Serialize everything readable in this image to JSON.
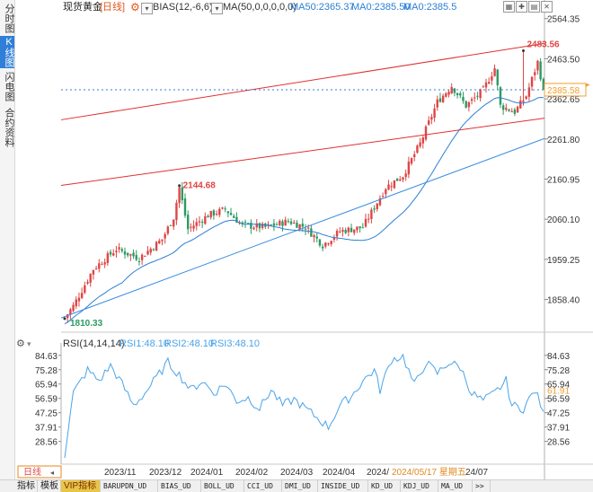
{
  "header": {
    "instrument": "现货黄金",
    "period": "[日线]",
    "bias_label": "BIAS(12,-6,6)",
    "ma_label": "MA(50,0,0,0,0,0)",
    "ma50": "MA50:2365.37",
    "ma0a": "MA0:2385.50",
    "ma0b": "MA0:2385.5"
  },
  "sidebar": {
    "tabs": [
      "分时图",
      "K线图",
      "闪电图",
      "合约资料"
    ],
    "active": 1
  },
  "rsi_header": {
    "label": "RSI(14,14,14)",
    "rsi1": "RSI1:48.10",
    "rsi2": "RSI2:48.10",
    "rsi3": "RSI3:48.10"
  },
  "bottom": {
    "period_label": "日线",
    "time_labels": [
      "2023/11",
      "2023/12",
      "2024/01",
      "2024/02",
      "2024/03",
      "2024/04",
      "2024/",
      "2024/05/17 星期五",
      "24/07"
    ],
    "tabs": [
      "指标",
      "模板",
      "VIP指标",
      "BARUPDN_UD",
      "BIAS_UD",
      "BOLL_UD",
      "CCI_UD",
      "DMI_UD",
      "INSIDE_UD",
      "KD_UD",
      "KDJ_UD",
      "MA_UD",
      ">>"
    ],
    "active_tab": 2
  },
  "colors": {
    "up": "#e04545",
    "down": "#2c9a62",
    "channel": "#e03030",
    "trend": "#3a8ee0",
    "ma": "#2b7fd6",
    "rsi": "#4aa3e8",
    "current_price": "#f0a030"
  },
  "chart_data": [
    {
      "type": "candlestick",
      "title": "现货黄金 [日线]",
      "y_ticks": [
        2564.35,
        2463.5,
        2362.65,
        2261.8,
        2160.95,
        2060.1,
        1959.25,
        1858.4
      ],
      "ylim": [
        1810.0,
        2575.0
      ],
      "x_ticks": [
        "2023/11",
        "2023/12",
        "2024/01",
        "2024/02",
        "2024/03",
        "2024/04",
        "2024/",
        "2024/05/17 星期五",
        "24/07"
      ],
      "current_price": 2385.58,
      "annotations": [
        {
          "label": "2483.56",
          "value": 2483.56,
          "type": "high"
        },
        {
          "label": "2144.68",
          "value": 2144.68,
          "type": "high"
        },
        {
          "label": "1810.33",
          "value": 1810.33,
          "type": "low"
        }
      ],
      "series": [
        {
          "name": "MA50",
          "value": 2365.37
        }
      ]
    },
    {
      "type": "line",
      "title": "RSI(14,14,14)",
      "y_ticks": [
        84.63,
        75.28,
        65.94,
        56.59,
        47.25,
        37.91,
        28.56
      ],
      "ylim": [
        19.0,
        88.0
      ],
      "current_value": 61.91,
      "series": [
        {
          "name": "RSI1",
          "last": 48.1
        },
        {
          "name": "RSI2",
          "last": 48.1
        },
        {
          "name": "RSI3",
          "last": 48.1
        }
      ]
    }
  ]
}
